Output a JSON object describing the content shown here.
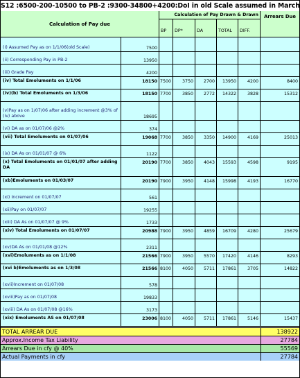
{
  "title": "S12 :6500-200-10500 to PB-2 :9300-34800+4200:DoI in old Scale assumed in March:",
  "header": {
    "calc_label": "Calculation of Pay  due",
    "drawn_label": "Calculation of Pay Drawn & Drawn",
    "arrears_label": "Arrears Due",
    "cols": [
      "BP",
      "DP*",
      "DA",
      "TOTAL",
      "DIFF."
    ]
  },
  "rows": [
    {
      "label": "(I) Assumed Pay as on 1/1/06(old Scale)",
      "due": "7500",
      "bp": "",
      "dp": "",
      "da": "",
      "total": "",
      "diff": "",
      "arrears": "",
      "bold": false
    },
    {
      "label": "(ii) Corresponding Pay in PB-2",
      "due": "13950",
      "bp": "",
      "dp": "",
      "da": "",
      "total": "",
      "diff": "",
      "arrears": "",
      "bold": false
    },
    {
      "label": "(iii) Grade Pay",
      "due": "4200",
      "bp": "",
      "dp": "",
      "da": "",
      "total": "",
      "diff": "",
      "arrears": "",
      "bold": false
    },
    {
      "label": "(iv) Total Emoluments on 1/1/06",
      "due": "18150",
      "bp": "7500",
      "dp": "3750",
      "da": "2700",
      "total": "13950",
      "diff": "4200",
      "arrears": "8400",
      "bold": true
    },
    {
      "label": "(iv)(b) Total Emoluments on 1/3/06",
      "due": "18150",
      "bp": "7700",
      "dp": "3850",
      "da": "2772",
      "total": "14322",
      "diff": "3828",
      "arrears": "15312",
      "bold": true
    },
    {
      "label": "(v)Pay as on 1/07/06 after adding increment @3% of (iv) above",
      "due": "18695",
      "bp": "",
      "dp": "",
      "da": "",
      "total": "",
      "diff": "",
      "arrears": "",
      "bold": false
    },
    {
      "label": "(vi) DA as on 01/07/06 @2%",
      "due": "374",
      "bp": "",
      "dp": "",
      "da": "",
      "total": "",
      "diff": "",
      "arrears": "",
      "bold": false
    },
    {
      "label": "(vii) Total Emoluments on 01/07/06",
      "due": "19068",
      "bp": "7700",
      "dp": "3850",
      "da": "3350",
      "total": "14900",
      "diff": "4169",
      "arrears": "25013",
      "bold": true
    },
    {
      "label": "(ix) DA As on 01/01/07 @ 6%",
      "due": "1122",
      "bp": "",
      "dp": "",
      "da": "",
      "total": "",
      "diff": "",
      "arrears": "",
      "bold": false
    },
    {
      "label": "(x) Total Emoluments  on 01/01/07 after adding DA",
      "due": "20190",
      "bp": "7700",
      "dp": "3850",
      "da": "4043",
      "total": "15593",
      "diff": "4598",
      "arrears": "9195",
      "bold": true
    },
    {
      "label": "(xb)Emoluments on 01/03/07",
      "due": "20190",
      "bp": "7900",
      "dp": "3950",
      "da": "4148",
      "total": "15998",
      "diff": "4193",
      "arrears": "16770",
      "bold": true
    },
    {
      "label": "(xi) Increment on 01/07/07",
      "due": "561",
      "bp": "",
      "dp": "",
      "da": "",
      "total": "",
      "diff": "",
      "arrears": "",
      "bold": false
    },
    {
      "label": "(xii)Pay on 01/07/07",
      "due": "19255",
      "bp": "",
      "dp": "",
      "da": "",
      "total": "",
      "diff": "",
      "arrears": "",
      "bold": false
    },
    {
      "label": "(xiii) DA As on 01/07/07 @ 9%",
      "due": "1733",
      "bp": "",
      "dp": "",
      "da": "",
      "total": "",
      "diff": "",
      "arrears": "",
      "bold": false
    },
    {
      "label": "(xiv) Total Emoluments on 01/07/07",
      "due": "20988",
      "bp": "7900",
      "dp": "3950",
      "da": "4859",
      "total": "16709",
      "diff": "4280",
      "arrears": "25679",
      "bold": true
    },
    {
      "label": "(xv)DA As on 01/01/08 @12%",
      "due": "2311",
      "bp": "",
      "dp": "",
      "da": "",
      "total": "",
      "diff": "",
      "arrears": "",
      "bold": false
    },
    {
      "label": "(xvi)Emoluments as on 1/1/08",
      "due": "21566",
      "bp": "7900",
      "dp": "3950",
      "da": "5570",
      "total": "17420",
      "diff": "4146",
      "arrears": "8293",
      "bold": true
    },
    {
      "label": "(xvi b)Emoluments as on 1/3/08",
      "due": "21566",
      "bp": "8100",
      "dp": "4050",
      "da": "5711",
      "total": "17861",
      "diff": "3705",
      "arrears": "14822",
      "bold": true
    },
    {
      "label": "(xvii)Increment on 01/07/08",
      "due": "578",
      "bp": "",
      "dp": "",
      "da": "",
      "total": "",
      "diff": "",
      "arrears": "",
      "bold": false
    },
    {
      "label": "(xviii)Pay  as on 01/07/08",
      "due": "19833",
      "bp": "",
      "dp": "",
      "da": "",
      "total": "",
      "diff": "",
      "arrears": "",
      "bold": false
    },
    {
      "label": "(xviii) DA As on 01/07/08 @16%",
      "due": "3173",
      "bp": "",
      "dp": "",
      "da": "",
      "total": "",
      "diff": "",
      "arrears": "",
      "bold": false
    },
    {
      "label": "(xix) Emoluments AS on  01/07/08",
      "due": "23006",
      "bp": "8100",
      "dp": "4050",
      "da": "5711",
      "total": "17861",
      "diff": "5146",
      "arrears": "15437",
      "bold": true
    }
  ],
  "summary": [
    {
      "label": "TOTAL ARREAR DUE",
      "value": "138922",
      "color": "#ffff66"
    },
    {
      "label": "Approx.Income Tax Liability",
      "value": "27784",
      "color": "#e8a8e0"
    },
    {
      "label": "Arrears Due in cfy @ 40%",
      "value": "55569",
      "color": "#a8e8a8"
    },
    {
      "label": "Actual Payments in cfy",
      "value": "27784",
      "color": "#a8d0f8"
    }
  ]
}
